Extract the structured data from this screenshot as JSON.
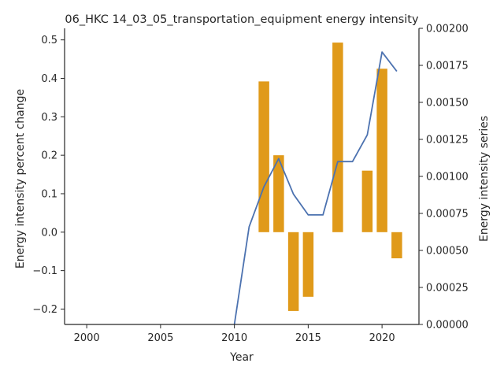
{
  "chart_data": {
    "type": "bar+line",
    "title": "06_HKC 14_03_05_transportation_equipment energy intensity",
    "xlabel": "Year",
    "ylabel_left": "Energy intensity percent change",
    "ylabel_right": "Energy intensity series",
    "xlim": [
      1998.5,
      2022.5
    ],
    "ylim_left": [
      -0.24,
      0.53
    ],
    "ylim_right": [
      0,
      0.002
    ],
    "x_ticks": [
      2000,
      2005,
      2010,
      2015,
      2020
    ],
    "y_ticks_left": [
      -0.2,
      -0.1,
      0.0,
      0.1,
      0.2,
      0.3,
      0.4,
      0.5
    ],
    "y_ticks_right": [
      0.0,
      0.00025,
      0.0005,
      0.00075,
      0.001,
      0.00125,
      0.0015,
      0.00175,
      0.002
    ],
    "x_tick_labels": [
      "2000",
      "2005",
      "2010",
      "2015",
      "2020"
    ],
    "y_tick_labels_left": [
      "−0.2",
      "−0.1",
      "0.0",
      "0.1",
      "0.2",
      "0.3",
      "0.4",
      "0.5"
    ],
    "y_tick_labels_right": [
      "0.00000",
      "0.00025",
      "0.00050",
      "0.00075",
      "0.00100",
      "0.00125",
      "0.00150",
      "0.00175",
      "0.00200"
    ],
    "bar_series": {
      "axis": "left",
      "color": "#e09a1a",
      "x": [
        2012,
        2013,
        2014,
        2015,
        2017,
        2019,
        2020,
        2021
      ],
      "values": [
        0.392,
        0.2,
        -0.205,
        -0.168,
        0.493,
        0.16,
        0.425,
        -0.068
      ]
    },
    "line_series": {
      "axis": "right",
      "color": "#4c72b0",
      "x": [
        2010,
        2011,
        2012,
        2013,
        2014,
        2015,
        2016,
        2017,
        2018,
        2019,
        2020,
        2021
      ],
      "values": [
        0.0,
        0.00066,
        0.00093,
        0.00112,
        0.00088,
        0.00074,
        0.00074,
        0.0011,
        0.0011,
        0.00128,
        0.00184,
        0.00171
      ]
    },
    "grid": false,
    "legend": "none"
  }
}
